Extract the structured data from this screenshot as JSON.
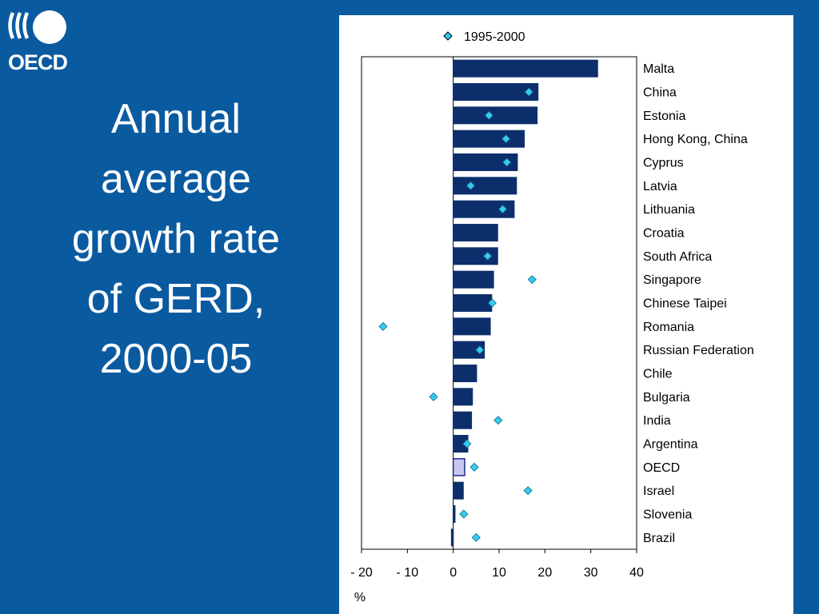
{
  "logo": {
    "text": "OECD"
  },
  "title": {
    "lines": [
      "Annual",
      "average",
      "growth rate",
      "of GERD,",
      "2000-05"
    ]
  },
  "colors": {
    "background": "#0a5aa0",
    "bar": "#0c2f6c",
    "bar_highlight": "#c7c7f2",
    "marker": "#33ccee",
    "panel": "#ffffff"
  },
  "chart_data": {
    "type": "bar",
    "orientation": "horizontal",
    "categories": [
      "Malta",
      "China",
      "Estonia",
      "Hong Kong, China",
      "Cyprus",
      "Latvia",
      "Lithuania",
      "Croatia",
      "South Africa",
      "Singapore",
      "Chinese Taipei",
      "Romania",
      "Russian Federation",
      "Chile",
      "Bulgaria",
      "India",
      "Argentina",
      "OECD",
      "Israel",
      "Slovenia",
      "Brazil"
    ],
    "highlight_category": "OECD",
    "series": [
      {
        "values": [
          31.5,
          18.5,
          18.3,
          15.5,
          14,
          13.8,
          13.3,
          9.7,
          9.7,
          8.8,
          8.4,
          8.1,
          6.8,
          5.1,
          4.2,
          4,
          3.2,
          2.5,
          2.2,
          0.4,
          -0.4
        ]
      },
      {
        "name": "1995-2000",
        "marker": "diamond",
        "values": [
          null,
          16.5,
          7.8,
          11.5,
          11.7,
          3.8,
          10.8,
          null,
          7.5,
          17.2,
          8.5,
          -15.3,
          5.8,
          null,
          -4.3,
          9.8,
          3,
          4.6,
          16.3,
          2.3,
          5
        ]
      }
    ],
    "legend": [
      "1995-2000"
    ],
    "legend_position": "top",
    "xlim": [
      -20,
      40
    ],
    "xticks": [
      -20,
      -10,
      0,
      10,
      20,
      30,
      40
    ],
    "xtick_labels": [
      "- 20",
      "- 10",
      "0",
      "10",
      "20",
      "30",
      "40"
    ],
    "xlabel": "%",
    "grid": false
  }
}
